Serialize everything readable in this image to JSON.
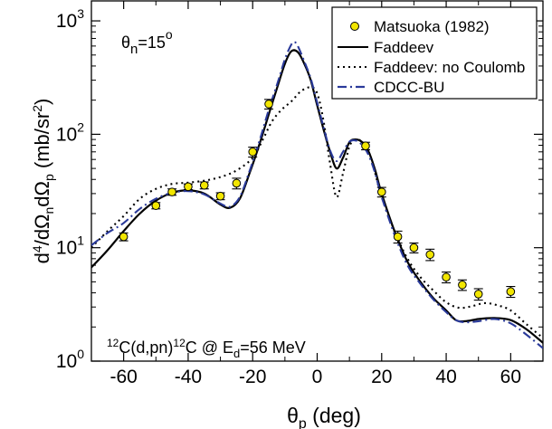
{
  "chart_data": {
    "type": "line",
    "xlabel": {
      "sym": "θ",
      "sub": "p",
      "unit": " (deg)"
    },
    "ylabel": {
      "pre": "d",
      "sup4": "4",
      "mid": "/dΩ",
      "subn": "n",
      "mid2": "dΩ",
      "subp": "p",
      "unit": " (mb/sr",
      "sup2": "2",
      "close": ")"
    },
    "xlim": [
      -70,
      70
    ],
    "ylim": [
      1,
      1500
    ],
    "yscale": "log",
    "x_ticks": [
      -60,
      -40,
      -20,
      0,
      20,
      40,
      60
    ],
    "x_tick_labels": [
      "-60",
      "-40",
      "-20",
      "0",
      "20",
      "40",
      "60"
    ],
    "y_ticks": [
      {
        "mantissa": "10",
        "exp": "0",
        "value": 1
      },
      {
        "mantissa": "10",
        "exp": "1",
        "value": 10
      },
      {
        "mantissa": "10",
        "exp": "2",
        "value": 100
      },
      {
        "mantissa": "10",
        "exp": "3",
        "value": 1000
      }
    ],
    "annotation_angle": {
      "theta": "θ",
      "sub": "n",
      "eq": "=15",
      "deg": "o"
    },
    "annotation_reaction": {
      "sup1": "12",
      "t1": "C(d,pn)",
      "sup2": "12",
      "t2": "C @ E",
      "sub": "d",
      "t3": "=56 MeV"
    },
    "legend_position": "top-right",
    "series": [
      {
        "name": "Matsuoka (1982)",
        "kind": "points",
        "color": "#f2e600",
        "points": [
          {
            "x": -60,
            "y": 12.5,
            "err": 1.0
          },
          {
            "x": -50,
            "y": 23.5,
            "err": 1.5
          },
          {
            "x": -45,
            "y": 31,
            "err": 2
          },
          {
            "x": -40,
            "y": 34.5,
            "err": 2
          },
          {
            "x": -35,
            "y": 35.5,
            "err": 2.5
          },
          {
            "x": -30,
            "y": 28.5,
            "err": 2
          },
          {
            "x": -25,
            "y": 37,
            "err": 4
          },
          {
            "x": -20,
            "y": 70,
            "err": 7
          },
          {
            "x": -15,
            "y": 185,
            "err": 18
          },
          {
            "x": 15,
            "y": 79,
            "err": 6
          },
          {
            "x": 20,
            "y": 31,
            "err": 3
          },
          {
            "x": 25,
            "y": 12.5,
            "err": 1.5
          },
          {
            "x": 30,
            "y": 10,
            "err": 1
          },
          {
            "x": 35,
            "y": 8.7,
            "err": 1
          },
          {
            "x": 40,
            "y": 5.5,
            "err": 0.6
          },
          {
            "x": 45,
            "y": 4.7,
            "err": 0.5
          },
          {
            "x": 50,
            "y": 3.9,
            "err": 0.45
          },
          {
            "x": 60,
            "y": 4.1,
            "err": 0.45
          }
        ]
      },
      {
        "name": "Faddeev",
        "kind": "line",
        "color": "#000000",
        "dash": "solid",
        "points": [
          [
            -70,
            6.7
          ],
          [
            -65,
            9.5
          ],
          [
            -60,
            14
          ],
          [
            -55,
            20
          ],
          [
            -50,
            26
          ],
          [
            -45,
            30.5
          ],
          [
            -40,
            32
          ],
          [
            -35,
            30
          ],
          [
            -30,
            24
          ],
          [
            -27,
            22.5
          ],
          [
            -24,
            27
          ],
          [
            -21,
            45
          ],
          [
            -18,
            80
          ],
          [
            -15,
            150
          ],
          [
            -12,
            280
          ],
          [
            -10,
            420
          ],
          [
            -8,
            540
          ],
          [
            -6,
            530
          ],
          [
            -4,
            420
          ],
          [
            -2,
            300
          ],
          [
            0,
            180
          ],
          [
            2,
            110
          ],
          [
            4,
            70
          ],
          [
            6,
            50
          ],
          [
            8,
            62
          ],
          [
            10,
            85
          ],
          [
            12,
            90
          ],
          [
            14,
            85
          ],
          [
            16,
            70
          ],
          [
            18,
            48
          ],
          [
            20,
            30
          ],
          [
            24,
            14
          ],
          [
            28,
            7.5
          ],
          [
            32,
            5
          ],
          [
            36,
            3.6
          ],
          [
            40,
            2.8
          ],
          [
            43,
            2.3
          ],
          [
            46,
            2.25
          ],
          [
            50,
            2.35
          ],
          [
            55,
            2.4
          ],
          [
            60,
            2.3
          ],
          [
            65,
            1.9
          ],
          [
            70,
            1.45
          ]
        ]
      },
      {
        "name": "Faddeev: no Coulomb",
        "kind": "line",
        "color": "#000000",
        "dash": "dotted",
        "points": [
          [
            -70,
            10
          ],
          [
            -65,
            14
          ],
          [
            -60,
            19
          ],
          [
            -55,
            27
          ],
          [
            -50,
            33
          ],
          [
            -45,
            36.5
          ],
          [
            -40,
            37.5
          ],
          [
            -35,
            39
          ],
          [
            -30,
            42
          ],
          [
            -25,
            48
          ],
          [
            -20,
            62
          ],
          [
            -17,
            88
          ],
          [
            -14,
            130
          ],
          [
            -11,
            165
          ],
          [
            -8,
            195
          ],
          [
            -5,
            240
          ],
          [
            -2,
            260
          ],
          [
            0,
            230
          ],
          [
            2,
            130
          ],
          [
            4,
            55
          ],
          [
            6,
            28
          ],
          [
            8,
            45
          ],
          [
            10,
            78
          ],
          [
            12,
            90
          ],
          [
            14,
            85
          ],
          [
            16,
            70
          ],
          [
            18,
            45
          ],
          [
            20,
            28
          ],
          [
            24,
            14
          ],
          [
            28,
            8
          ],
          [
            32,
            5.5
          ],
          [
            36,
            4.2
          ],
          [
            40,
            3.3
          ],
          [
            44,
            2.95
          ],
          [
            48,
            3.05
          ],
          [
            52,
            3.25
          ],
          [
            56,
            3.1
          ],
          [
            60,
            2.8
          ],
          [
            65,
            2.1
          ],
          [
            70,
            1.6
          ]
        ]
      },
      {
        "name": "CDCC-BU",
        "kind": "line",
        "color": "#2a3a9a",
        "dash": "dashdot",
        "points": [
          [
            -70,
            10.5
          ],
          [
            -65,
            13.5
          ],
          [
            -60,
            16.5
          ],
          [
            -55,
            22
          ],
          [
            -50,
            27
          ],
          [
            -45,
            30.5
          ],
          [
            -40,
            31.5
          ],
          [
            -35,
            29.5
          ],
          [
            -30,
            24.5
          ],
          [
            -27,
            23
          ],
          [
            -24,
            28
          ],
          [
            -21,
            47
          ],
          [
            -18,
            85
          ],
          [
            -15,
            165
          ],
          [
            -12,
            300
          ],
          [
            -10,
            460
          ],
          [
            -8,
            620
          ],
          [
            -7,
            650
          ],
          [
            -6,
            600
          ],
          [
            -4,
            440
          ],
          [
            -2,
            310
          ],
          [
            0,
            190
          ],
          [
            2,
            115
          ],
          [
            4,
            72
          ],
          [
            6,
            58
          ],
          [
            8,
            70
          ],
          [
            10,
            86
          ],
          [
            12,
            88
          ],
          [
            14,
            80
          ],
          [
            16,
            65
          ],
          [
            18,
            45
          ],
          [
            20,
            28
          ],
          [
            24,
            13
          ],
          [
            28,
            7
          ],
          [
            32,
            4.8
          ],
          [
            36,
            3.5
          ],
          [
            40,
            2.7
          ],
          [
            43,
            2.3
          ],
          [
            46,
            2.2
          ],
          [
            50,
            2.25
          ],
          [
            55,
            2.35
          ],
          [
            60,
            2.15
          ],
          [
            65,
            1.7
          ],
          [
            70,
            1.3
          ]
        ]
      }
    ]
  }
}
